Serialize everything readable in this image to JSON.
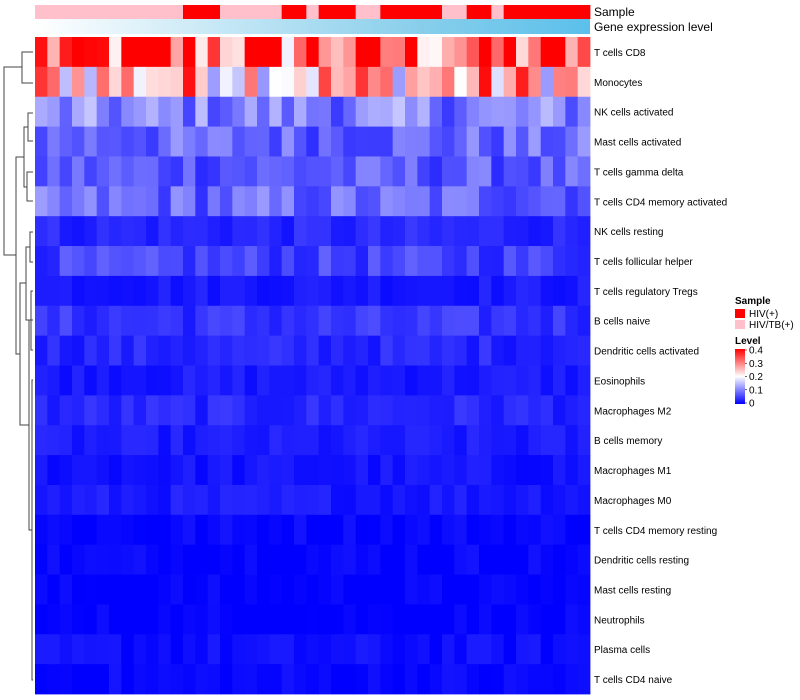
{
  "chart_data": {
    "type": "heatmap",
    "annotation_tracks": [
      "Sample",
      "Gene expression level"
    ],
    "rows": [
      "T cells CD8",
      "Monocytes",
      "NK cells activated",
      "Mast cells activated",
      "T cells gamma delta",
      "T cells CD4 memory activated",
      "NK cells resting",
      "T cells follicular helper",
      "T cells regulatory  Tregs",
      "B cells naive",
      "Dendritic cells activated",
      "Eosinophils",
      "Macrophages M2",
      "B cells memory",
      "Macrophages M1",
      "Macrophages M0",
      "T cells CD4 memory resting",
      "Dendritic cells resting",
      "Mast cells resting",
      "Neutrophils",
      "Plasma cells",
      "T cells CD4 naive"
    ],
    "n_columns": 45,
    "sample_groups": [
      "HIV/TB(+)",
      "HIV/TB(+)",
      "HIV/TB(+)",
      "HIV/TB(+)",
      "HIV/TB(+)",
      "HIV/TB(+)",
      "HIV/TB(+)",
      "HIV/TB(+)",
      "HIV/TB(+)",
      "HIV/TB(+)",
      "HIV/TB(+)",
      "HIV/TB(+)",
      "HIV(+)",
      "HIV(+)",
      "HIV(+)",
      "HIV/TB(+)",
      "HIV/TB(+)",
      "HIV/TB(+)",
      "HIV/TB(+)",
      "HIV/TB(+)",
      "HIV(+)",
      "HIV(+)",
      "HIV/TB(+)",
      "HIV(+)",
      "HIV(+)",
      "HIV(+)",
      "HIV/TB(+)",
      "HIV/TB(+)",
      "HIV(+)",
      "HIV(+)",
      "HIV(+)",
      "HIV(+)",
      "HIV(+)",
      "HIV/TB(+)",
      "HIV/TB(+)",
      "HIV(+)",
      "HIV(+)",
      "HIV/TB(+)",
      "HIV(+)",
      "HIV(+)",
      "HIV(+)",
      "HIV(+)",
      "HIV(+)",
      "HIV(+)",
      "HIV(+)"
    ],
    "row_base_levels": [
      0.33,
      0.26,
      0.1,
      0.08,
      0.07,
      0.08,
      0.03,
      0.05,
      0.02,
      0.04,
      0.03,
      0.02,
      0.03,
      0.02,
      0.015,
      0.02,
      0.005,
      0.005,
      0.0,
      0.0,
      0.01,
      0.005
    ],
    "color_scale": {
      "min": 0,
      "max": 0.4,
      "low": "#0000ff",
      "mid": "#ffffff",
      "high": "#ff0000"
    },
    "legend": {
      "sample_title": "Sample",
      "sample_items": [
        {
          "label": "HIV(+)",
          "color": "#ff0000"
        },
        {
          "label": "HIV/TB(+)",
          "color": "#ffc0cb"
        }
      ],
      "level_title": "Level",
      "level_ticks": [
        "0.4",
        "0.3",
        "0.2",
        "0.1",
        "0"
      ]
    }
  }
}
